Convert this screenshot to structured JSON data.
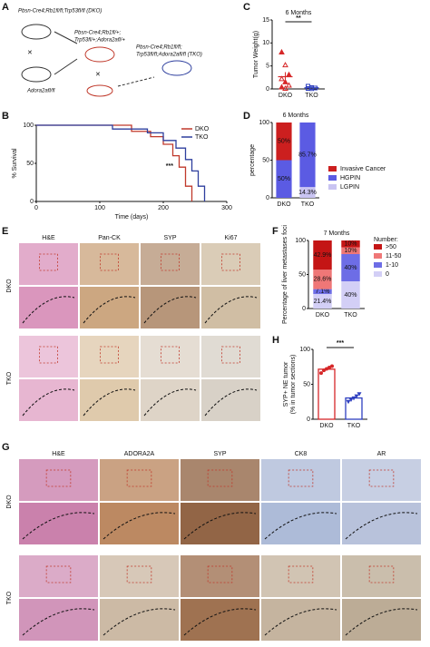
{
  "panel_letters": [
    "A",
    "B",
    "C",
    "D",
    "E",
    "F",
    "G",
    "H"
  ],
  "schematic": {
    "dko": "Pbsn-Cre4;Rb1fl/fl;Trp53fl/fl (DKO)",
    "het": "Pbsn-Cre4;Rb1fl/+;",
    "het2": "Trp53fl/+;Adora2afl/+",
    "tko": "Pbsn-Cre4;Rb1fl/fl;",
    "tko2": "Trp53fl/fl;Adora2afl/fl (TKO)",
    "adora": "Adora2afl/fl"
  },
  "panel_e": {
    "columns": [
      "H&E",
      "Pan-CK",
      "SYP",
      "Ki67"
    ],
    "rows": [
      "DKO",
      "TKO"
    ]
  },
  "panel_g": {
    "columns": [
      "H&E",
      "ADORA2A",
      "SYP",
      "CK8",
      "AR"
    ],
    "rows": [
      "DKO",
      "TKO"
    ]
  },
  "chart_data": [
    {
      "type": "line",
      "y_label": "% Survival",
      "x_label": "Time (days)",
      "xlim": [
        0,
        300
      ],
      "xticks": [
        0,
        100,
        200,
        300
      ],
      "ylim": [
        0,
        100
      ],
      "yticks": [
        0,
        50,
        100
      ],
      "annotation": "***",
      "series": [
        {
          "name": "DKO",
          "color": "#c0392b",
          "x": [
            0,
            150,
            150,
            180,
            180,
            200,
            200,
            215,
            215,
            225,
            225,
            235,
            235,
            245,
            245
          ],
          "values": [
            100,
            100,
            92,
            92,
            85,
            85,
            75,
            75,
            60,
            60,
            45,
            45,
            20,
            20,
            0
          ]
        },
        {
          "name": "TKO",
          "color": "#2e3f9e",
          "x": [
            0,
            120,
            120,
            175,
            175,
            200,
            200,
            220,
            220,
            235,
            235,
            245,
            245,
            255,
            255,
            265,
            265
          ],
          "values": [
            100,
            100,
            95,
            95,
            90,
            90,
            80,
            80,
            70,
            70,
            55,
            55,
            40,
            40,
            20,
            20,
            0
          ]
        }
      ]
    },
    {
      "type": "strip",
      "title": "6 Months",
      "y_label": "Tumor Weight(g)",
      "ylim": [
        0,
        15
      ],
      "yticks": [
        0,
        5,
        10,
        15
      ],
      "annotation": "**",
      "categories": [
        "DKO",
        "TKO"
      ],
      "groups": [
        {
          "color": "#d62728",
          "values": [
            8,
            5.2,
            3.1,
            2.2,
            1.5,
            0.8,
            0.4,
            0.1
          ],
          "mean": 2.66,
          "error": 1.0
        },
        {
          "color": "#2e3fbf",
          "values": [
            0.6,
            0.3,
            0.2,
            0.1,
            0.05
          ],
          "mean": 0.25,
          "error": 0.1
        }
      ]
    },
    {
      "type": "bar",
      "stacked": true,
      "title": "6 Months",
      "y_label": "percentage",
      "ylim": [
        0,
        100
      ],
      "yticks": [
        0,
        50,
        100
      ],
      "categories": [
        "DKO",
        "TKO"
      ],
      "series": [
        {
          "name": "LGPIN",
          "color": "#c9c4f2",
          "values": [
            0,
            14.3
          ],
          "value_labels": [
            null,
            "14.3%"
          ]
        },
        {
          "name": "HGPIN",
          "color": "#5b5be3",
          "values": [
            50,
            85.7
          ],
          "value_labels": [
            "50%",
            "85.7%"
          ]
        },
        {
          "name": "Invasive Cancer",
          "color": "#cc1f1f",
          "values": [
            50,
            0
          ],
          "value_labels": [
            "50%",
            null
          ]
        }
      ]
    },
    {
      "type": "bar",
      "stacked": true,
      "title": "7 Months",
      "y_label": "Percentage of liver metastases foci",
      "legend_title": "Number:",
      "ylim": [
        0,
        100
      ],
      "yticks": [
        0,
        50,
        100
      ],
      "categories": [
        "DKO",
        "TKO"
      ],
      "series": [
        {
          "name": "0",
          "color": "#d3cff6",
          "values": [
            21.4,
            40
          ],
          "value_labels": [
            "21.4%",
            "40%"
          ]
        },
        {
          "name": "1-10",
          "color": "#6d6de6",
          "values": [
            7.1,
            40
          ],
          "value_labels": [
            "7.1%",
            "40%"
          ]
        },
        {
          "name": "11-50",
          "color": "#ef7777",
          "values": [
            28.6,
            10
          ],
          "value_labels": [
            "28.6%",
            "10%"
          ]
        },
        {
          "name": ">50",
          "color": "#c41515",
          "values": [
            42.9,
            10
          ],
          "value_labels": [
            "42.9%",
            "10%"
          ]
        }
      ]
    },
    {
      "type": "dotbar",
      "y_label": "SYP+ NE tumor",
      "y_label2": "(% in tumor sections)",
      "ylim": [
        0,
        100
      ],
      "yticks": [
        0,
        50,
        100
      ],
      "annotation": "***",
      "categories": [
        "DKO",
        "TKO"
      ],
      "groups": [
        {
          "color": "#d62728",
          "value": 71.6,
          "error": 2,
          "points": [
            66,
            70,
            72,
            74,
            76
          ]
        },
        {
          "color": "#2e3fbf",
          "value": 30.4,
          "error": 2,
          "points": [
            25,
            28,
            30,
            33,
            36
          ]
        }
      ]
    }
  ]
}
